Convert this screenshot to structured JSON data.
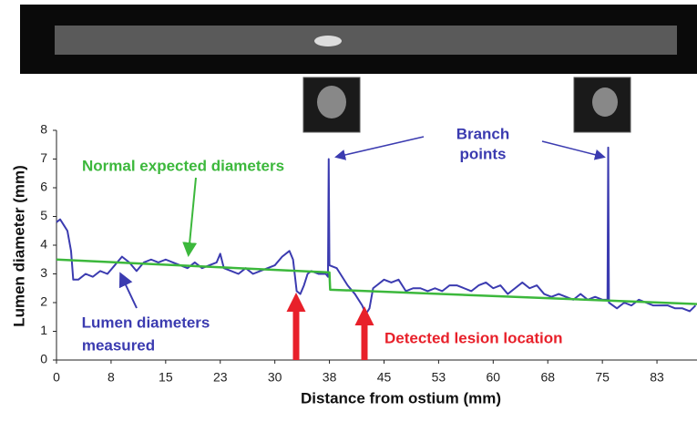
{
  "chart_data": {
    "type": "line",
    "x_label": "Distance from ostium (mm)",
    "y_label": "Lumen diameter (mm)",
    "xlim": [
      0,
      88
    ],
    "ylim": [
      0,
      8
    ],
    "xticks": [
      0,
      {
        "value": 7.5,
        "label": "8"
      },
      15,
      {
        "value": 22.5,
        "label": "23"
      },
      30,
      {
        "value": 37.5,
        "label": "38"
      },
      45,
      {
        "value": 52.5,
        "label": "53"
      },
      60,
      {
        "value": 67.5,
        "label": "68"
      },
      75,
      {
        "value": 82.5,
        "label": "83"
      }
    ],
    "yticks": [
      0,
      1,
      2,
      3,
      4,
      5,
      6,
      7,
      8
    ],
    "series": [
      {
        "name": "Lumen diameters measured",
        "color": "#3b3bb0",
        "x": [
          0,
          0.5,
          1,
          1.5,
          2,
          2.3,
          3,
          4,
          5,
          6,
          7,
          8,
          9,
          10,
          11,
          12,
          13,
          14,
          15,
          16,
          17,
          18,
          19,
          20,
          21,
          22,
          22.5,
          23,
          24,
          25,
          26,
          27,
          28,
          29,
          30,
          31,
          32,
          32.5,
          33,
          33.5,
          34,
          34.5,
          35,
          36,
          37,
          37.3,
          37.4,
          37.5,
          38.5,
          39,
          40,
          41,
          42,
          42.5,
          43,
          43.5,
          44,
          45,
          46,
          47,
          48,
          49,
          50,
          51,
          52,
          53,
          54,
          55,
          56,
          57,
          58,
          59,
          60,
          61,
          62,
          63,
          64,
          65,
          66,
          67,
          68,
          69,
          70,
          71,
          72,
          73,
          74,
          75,
          75.7,
          75.8,
          75.9,
          77,
          78,
          79,
          80,
          81,
          82,
          83,
          84,
          85,
          86,
          87,
          87.8
        ],
        "values": [
          4.8,
          4.9,
          4.7,
          4.5,
          3.8,
          2.8,
          2.8,
          3.0,
          2.9,
          3.1,
          3.0,
          3.3,
          3.6,
          3.4,
          3.1,
          3.4,
          3.5,
          3.4,
          3.5,
          3.4,
          3.3,
          3.2,
          3.4,
          3.2,
          3.3,
          3.4,
          3.7,
          3.2,
          3.1,
          3.0,
          3.2,
          3.0,
          3.1,
          3.2,
          3.3,
          3.6,
          3.8,
          3.5,
          2.4,
          2.3,
          2.6,
          3.0,
          3.1,
          3.0,
          3.0,
          2.9,
          7.0,
          3.3,
          3.2,
          3.0,
          2.6,
          2.3,
          1.9,
          1.6,
          1.8,
          2.5,
          2.6,
          2.8,
          2.7,
          2.8,
          2.4,
          2.5,
          2.5,
          2.4,
          2.5,
          2.4,
          2.6,
          2.6,
          2.5,
          2.4,
          2.6,
          2.7,
          2.5,
          2.6,
          2.3,
          2.5,
          2.7,
          2.5,
          2.6,
          2.3,
          2.2,
          2.3,
          2.2,
          2.1,
          2.3,
          2.1,
          2.2,
          2.1,
          2.1,
          7.4,
          2.0,
          1.8,
          2.0,
          1.9,
          2.1,
          2.0,
          1.9,
          1.9,
          1.9,
          1.8,
          1.8,
          1.7,
          1.9
        ]
      },
      {
        "name": "Normal expected diameters",
        "color": "#3cb83c",
        "x": [
          0,
          37.5,
          37.6,
          88
        ],
        "values": [
          3.5,
          3.05,
          2.45,
          1.95
        ]
      }
    ],
    "annotations": [
      [
        "Branch",
        "points"
      ],
      [
        "Lumen diameters",
        "measured"
      ],
      [
        "Detected lesion location"
      ]
    ]
  }
}
